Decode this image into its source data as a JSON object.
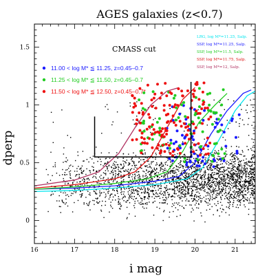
{
  "chart_data": {
    "type": "scatter",
    "title": "AGES galaxies (z<0.7)",
    "xlabel": "i mag",
    "ylabel": "dperp",
    "xlim": [
      16,
      21.5
    ],
    "ylim": [
      -0.2,
      1.7
    ],
    "xticks": [
      16,
      17,
      18,
      19,
      20,
      21
    ],
    "yticks": [
      0,
      0.5,
      1,
      1.5
    ],
    "annotation": "CMASS cut",
    "cut_box": {
      "i_min": 17.5,
      "i_max": 19.9,
      "dperp_min": 0.55,
      "dperp_max_left": 0.9,
      "dperp_max_right": 1.2
    },
    "colored_series": [
      {
        "label": "11.00 <  log M* ≦ 11.25, z=0.45–0.7",
        "color": "#1a1aff",
        "n": 70,
        "i_range": [
          19.3,
          21.2
        ],
        "dperp_range": [
          0.45,
          1.0
        ]
      },
      {
        "label": "11.25 <  log M* ≦ 11.50, z=0.45–0.7",
        "color": "#22cc22",
        "n": 80,
        "i_range": [
          18.6,
          20.8
        ],
        "dperp_range": [
          0.5,
          1.15
        ]
      },
      {
        "label": "11.50 <  log M* ≦ 12.50, z=0.45–0.7*",
        "color": "#ee1111",
        "n": 140,
        "i_range": [
          18.4,
          20.4
        ],
        "dperp_range": [
          0.55,
          1.2
        ]
      }
    ],
    "background_series": {
      "color": "#000000",
      "n": 2800,
      "i_range": [
        16.2,
        21.5
      ],
      "dperp_center": 0.32,
      "dperp_spread": 0.12
    },
    "tracks": [
      {
        "label": "LRG, log M*=11.25, Salp.",
        "color": "#00e5ee",
        "points": [
          [
            16,
            0.25
          ],
          [
            17,
            0.26
          ],
          [
            18,
            0.28
          ],
          [
            19,
            0.31
          ],
          [
            19.8,
            0.36
          ],
          [
            20.2,
            0.46
          ],
          [
            20.6,
            0.7
          ],
          [
            21,
            0.95
          ],
          [
            21.3,
            1.08
          ],
          [
            21.5,
            1.12
          ]
        ]
      },
      {
        "label": "SSP, log M*=11.25, Salp.",
        "color": "#1a1aff",
        "points": [
          [
            16,
            0.27
          ],
          [
            17,
            0.28
          ],
          [
            18,
            0.3
          ],
          [
            19,
            0.34
          ],
          [
            19.6,
            0.38
          ],
          [
            20,
            0.5
          ],
          [
            20.4,
            0.75
          ],
          [
            20.8,
            0.95
          ],
          [
            21.2,
            1.1
          ],
          [
            21.4,
            1.13
          ]
        ]
      },
      {
        "label": "SSP, log M*=11.5, Salp.",
        "color": "#22cc22",
        "points": [
          [
            16,
            0.27
          ],
          [
            17,
            0.29
          ],
          [
            18,
            0.32
          ],
          [
            18.8,
            0.36
          ],
          [
            19.3,
            0.42
          ],
          [
            19.7,
            0.6
          ],
          [
            20.1,
            0.85
          ],
          [
            20.5,
            1.0
          ],
          [
            20.8,
            1.1
          ]
        ]
      },
      {
        "label": "SSP, log M*=11.75, Salp.",
        "color": "#dd1111",
        "points": [
          [
            16,
            0.28
          ],
          [
            17,
            0.31
          ],
          [
            18,
            0.36
          ],
          [
            18.5,
            0.42
          ],
          [
            18.9,
            0.55
          ],
          [
            19.3,
            0.8
          ],
          [
            19.7,
            1.05
          ],
          [
            20.0,
            1.15
          ]
        ]
      },
      {
        "label": "SSP, log M*=12, Salp.",
        "color": "#b03060",
        "points": [
          [
            16,
            0.3
          ],
          [
            17,
            0.35
          ],
          [
            17.6,
            0.42
          ],
          [
            18.1,
            0.58
          ],
          [
            18.5,
            0.8
          ],
          [
            18.9,
            1.0
          ],
          [
            19.3,
            1.12
          ],
          [
            19.6,
            1.15
          ]
        ]
      }
    ]
  }
}
